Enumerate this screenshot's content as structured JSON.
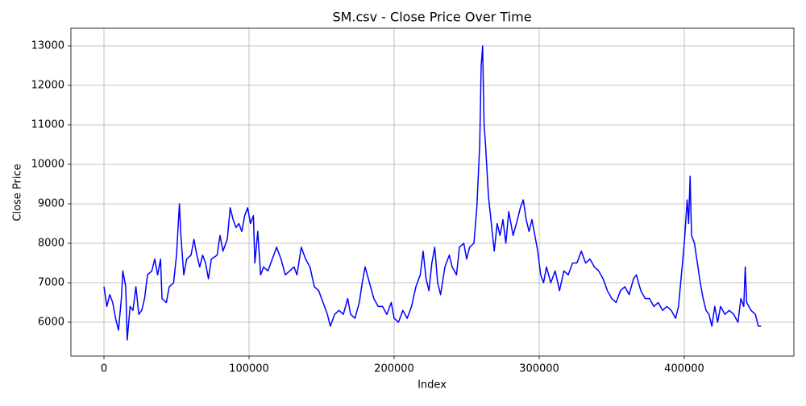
{
  "chart_data": {
    "type": "line",
    "title": "SM.csv - Close Price Over Time",
    "x_label": "Index",
    "y_label": "Close Price",
    "x": [
      0,
      2000,
      4000,
      6000,
      8000,
      10000,
      12000,
      13000,
      15000,
      16000,
      18000,
      20000,
      22000,
      24000,
      26000,
      28000,
      30000,
      33000,
      35000,
      37000,
      39000,
      40000,
      43000,
      45000,
      48000,
      50000,
      52000,
      53000,
      55000,
      57000,
      60000,
      62000,
      64000,
      66000,
      68000,
      70000,
      72000,
      74000,
      78000,
      80000,
      82000,
      85000,
      87000,
      89000,
      91000,
      93000,
      95000,
      97000,
      99000,
      101000,
      103000,
      104000,
      106000,
      108000,
      110000,
      113000,
      116000,
      119000,
      122000,
      125000,
      128000,
      131000,
      133000,
      136000,
      139000,
      142000,
      145000,
      148000,
      151000,
      154000,
      156000,
      159000,
      162000,
      165000,
      168000,
      170000,
      173000,
      176000,
      178000,
      180000,
      183000,
      186000,
      189000,
      192000,
      195000,
      198000,
      200000,
      203000,
      206000,
      209000,
      212000,
      215000,
      218000,
      220000,
      222000,
      224000,
      226000,
      228000,
      230000,
      232000,
      235000,
      238000,
      240000,
      243000,
      245000,
      248000,
      250000,
      252000,
      255000,
      257000,
      259000,
      260000,
      261000,
      262000,
      263000,
      265000,
      267000,
      269000,
      271000,
      273000,
      275000,
      277000,
      279000,
      282000,
      285000,
      287000,
      289000,
      291000,
      293000,
      295000,
      297000,
      299000,
      301000,
      303000,
      305000,
      308000,
      311000,
      314000,
      317000,
      320000,
      323000,
      326000,
      329000,
      332000,
      335000,
      338000,
      341000,
      344000,
      347000,
      350000,
      353000,
      356000,
      359000,
      362000,
      365000,
      367000,
      370000,
      373000,
      376000,
      379000,
      382000,
      385000,
      388000,
      391000,
      394000,
      396000,
      398000,
      400000,
      402000,
      403000,
      404000,
      405000,
      407000,
      409000,
      411000,
      413000,
      415000,
      417000,
      419000,
      421000,
      423000,
      425000,
      428000,
      431000,
      434000,
      437000,
      439000,
      441000,
      442000,
      443000,
      446000,
      449000,
      451000,
      453000
    ],
    "series": [
      {
        "name": "Close",
        "color": "blue",
        "values": [
          6900,
          6400,
          6700,
          6500,
          6100,
          5800,
          6600,
          7300,
          6900,
          5550,
          6400,
          6300,
          6900,
          6200,
          6300,
          6600,
          7200,
          7300,
          7600,
          7200,
          7600,
          6600,
          6500,
          6900,
          7000,
          7700,
          9000,
          8200,
          7200,
          7600,
          7700,
          8100,
          7700,
          7400,
          7700,
          7500,
          7100,
          7600,
          7700,
          8200,
          7800,
          8100,
          8900,
          8600,
          8400,
          8500,
          8300,
          8700,
          8900,
          8500,
          8700,
          7500,
          8300,
          7200,
          7400,
          7300,
          7600,
          7900,
          7600,
          7200,
          7300,
          7400,
          7200,
          7900,
          7600,
          7400,
          6900,
          6800,
          6500,
          6200,
          5900,
          6200,
          6300,
          6200,
          6600,
          6200,
          6100,
          6500,
          7000,
          7400,
          7000,
          6600,
          6400,
          6400,
          6200,
          6500,
          6100,
          6000,
          6300,
          6100,
          6400,
          6900,
          7200,
          7800,
          7100,
          6800,
          7500,
          7900,
          7000,
          6700,
          7400,
          7700,
          7400,
          7200,
          7900,
          8000,
          7600,
          7900,
          8000,
          8900,
          10500,
          12500,
          13000,
          11000,
          10500,
          9200,
          8500,
          7800,
          8500,
          8200,
          8600,
          8000,
          8800,
          8200,
          8600,
          8900,
          9100,
          8600,
          8300,
          8600,
          8200,
          7800,
          7200,
          7000,
          7400,
          7000,
          7300,
          6800,
          7300,
          7200,
          7500,
          7500,
          7800,
          7500,
          7600,
          7400,
          7300,
          7100,
          6800,
          6600,
          6500,
          6800,
          6900,
          6700,
          7100,
          7200,
          6800,
          6600,
          6600,
          6400,
          6500,
          6300,
          6400,
          6300,
          6100,
          6400,
          7200,
          8000,
          9100,
          8500,
          9700,
          8200,
          8000,
          7500,
          7000,
          6600,
          6300,
          6200,
          5900,
          6400,
          6000,
          6400,
          6200,
          6300,
          6200,
          6000,
          6600,
          6400,
          7400,
          6500,
          6300,
          6200,
          5900,
          5900
        ]
      }
    ],
    "xlim": [
      -22778,
      475556
    ],
    "xticks": [
      0,
      100000,
      200000,
      300000,
      400000
    ],
    "ylim": [
      5143,
      13449
    ],
    "yticks": [
      6000,
      7000,
      8000,
      9000,
      10000,
      11000,
      12000,
      13000
    ],
    "grid": true
  }
}
